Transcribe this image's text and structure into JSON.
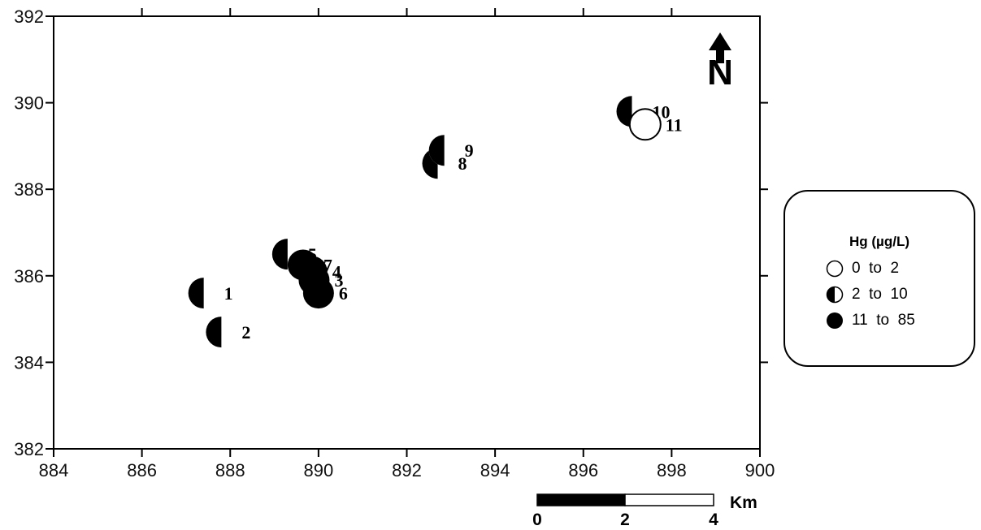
{
  "chart_data": {
    "type": "scatter",
    "title": "",
    "xlabel": "",
    "ylabel": "",
    "xlim": [
      884,
      900
    ],
    "ylim": [
      382,
      392
    ],
    "x_ticks": [
      "884",
      "886",
      "888",
      "890",
      "892",
      "894",
      "896",
      "898",
      "900"
    ],
    "y_ticks": [
      "382",
      "384",
      "386",
      "388",
      "390",
      "392"
    ],
    "grid": false,
    "legend_position": "right",
    "points": [
      {
        "label": "1",
        "x": 887.4,
        "y": 385.6,
        "class": "2 to 10"
      },
      {
        "label": "2",
        "x": 887.8,
        "y": 384.7,
        "class": "2 to 10"
      },
      {
        "label": "3",
        "x": 889.9,
        "y": 385.9,
        "class": "11 to 85"
      },
      {
        "label": "4",
        "x": 889.85,
        "y": 386.1,
        "class": "11 to 85"
      },
      {
        "label": "5",
        "x": 889.3,
        "y": 386.5,
        "class": "2 to 10"
      },
      {
        "label": "6",
        "x": 890.0,
        "y": 385.6,
        "class": "11 to 85"
      },
      {
        "label": "7",
        "x": 889.65,
        "y": 386.25,
        "class": "11 to 85"
      },
      {
        "label": "8",
        "x": 892.7,
        "y": 388.6,
        "class": "2 to 10"
      },
      {
        "label": "9",
        "x": 892.85,
        "y": 388.9,
        "class": "2 to 10"
      },
      {
        "label": "10",
        "x": 897.1,
        "y": 389.8,
        "class": "2 to 10"
      },
      {
        "label": "11",
        "x": 897.4,
        "y": 389.5,
        "class": "0 to 2"
      }
    ]
  },
  "legend": {
    "title": "Hg (µg/L)",
    "items": [
      {
        "label": "0  to  2",
        "icon": "open-circle-icon",
        "fill": "none"
      },
      {
        "label": "2  to  10",
        "icon": "half-filled-circle-icon",
        "fill": "half-left"
      },
      {
        "label": "11  to  85",
        "icon": "filled-circle-icon",
        "fill": "full"
      }
    ]
  },
  "north_arrow": {
    "label": "N",
    "icon": "north-arrow-icon"
  },
  "scale_bar": {
    "unit": "Km",
    "ticks": [
      "0",
      "2",
      "4"
    ]
  },
  "colors": {
    "ink": "#000000",
    "background": "#ffffff"
  }
}
